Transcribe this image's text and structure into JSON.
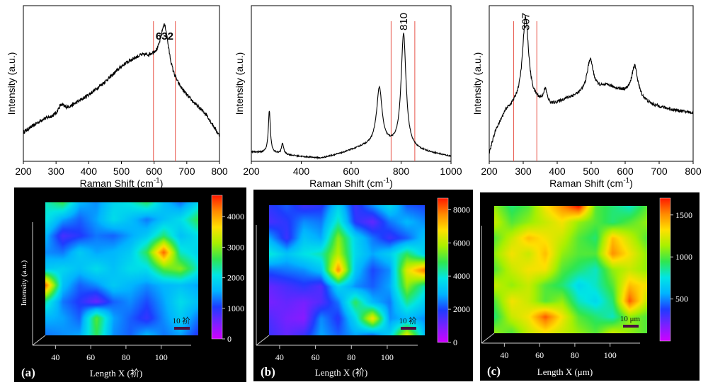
{
  "colors": {
    "spectrum_line": "#000000",
    "marker_line": "#e8554a",
    "panel_bg": "#000000",
    "axis_light": "#cccccc",
    "text_light": "#ffffff",
    "colormap": [
      "#d000ff",
      "#7a20ff",
      "#1e3cff",
      "#00b4ff",
      "#00e5e5",
      "#2fe650",
      "#a8f000",
      "#ffe000",
      "#ff8a00",
      "#ff1800"
    ]
  },
  "chart_data": [
    {
      "type": "line",
      "panel": "spectrum-1",
      "xlabel": "Raman Shift (cm",
      "xlabel_sup": "-1",
      "xlabel_end": ")",
      "ylabel": "Intensity (a.u.)",
      "xlim": [
        200,
        800
      ],
      "xticks": [
        200,
        300,
        400,
        500,
        600,
        700,
        800
      ],
      "ylim": [
        0,
        1
      ],
      "peak_label": "632",
      "peak_label_x": 632,
      "peak_label_bold": true,
      "peak_label_rotated": false,
      "markers": [
        598,
        665
      ],
      "peaks": [
        {
          "center": 632,
          "height": 0.31,
          "width": 16
        },
        {
          "center": 315,
          "height": 0.05,
          "width": 12
        },
        {
          "center": 550,
          "height": 0.1,
          "width": 90
        }
      ],
      "baseline": [
        [
          200,
          0.18
        ],
        [
          260,
          0.26
        ],
        [
          300,
          0.28
        ],
        [
          400,
          0.4
        ],
        [
          500,
          0.53
        ],
        [
          560,
          0.57
        ],
        [
          600,
          0.57
        ],
        [
          680,
          0.42
        ],
        [
          760,
          0.28
        ],
        [
          800,
          0.15
        ]
      ],
      "noise": 0.012
    },
    {
      "type": "line",
      "panel": "spectrum-2",
      "xlabel": "Raman Shift (cm",
      "xlabel_sup": "-1",
      "xlabel_end": ")",
      "ylabel": "Intensity (a.u.)",
      "xlim": [
        200,
        1000
      ],
      "xticks": [
        200,
        400,
        600,
        800,
        1000
      ],
      "ylim": [
        0,
        1
      ],
      "peak_label": "810",
      "peak_label_x": 810,
      "peak_label_bold": false,
      "peak_label_rotated": true,
      "markers": [
        760,
        855
      ],
      "peaks": [
        {
          "center": 810,
          "height": 0.73,
          "width": 12
        },
        {
          "center": 713,
          "height": 0.36,
          "width": 13
        },
        {
          "center": 272,
          "height": 0.27,
          "width": 5
        },
        {
          "center": 325,
          "height": 0.07,
          "width": 5
        }
      ],
      "baseline": [
        [
          200,
          0.06
        ],
        [
          300,
          0.05
        ],
        [
          400,
          0.03
        ],
        [
          480,
          0.02
        ],
        [
          560,
          0.05
        ],
        [
          640,
          0.09
        ],
        [
          700,
          0.11
        ],
        [
          760,
          0.1
        ],
        [
          860,
          0.07
        ],
        [
          1000,
          0.03
        ]
      ],
      "noise": 0.004
    },
    {
      "type": "line",
      "panel": "spectrum-3",
      "xlabel": "Raman Shift (cm",
      "xlabel_sup": "-1",
      "xlabel_end": ")",
      "ylabel": "Intensity (a.u.)",
      "xlim": [
        200,
        800
      ],
      "xticks": [
        200,
        300,
        400,
        500,
        600,
        700,
        800
      ],
      "ylim": [
        0,
        1
      ],
      "peak_label": "307",
      "peak_label_x": 307,
      "peak_label_bold": false,
      "peak_label_rotated": true,
      "markers": [
        272,
        340
      ],
      "peaks": [
        {
          "center": 307,
          "height": 0.56,
          "width": 11
        },
        {
          "center": 365,
          "height": 0.09,
          "width": 7
        },
        {
          "center": 497,
          "height": 0.21,
          "width": 11
        },
        {
          "center": 628,
          "height": 0.2,
          "width": 11
        }
      ],
      "baseline": [
        [
          200,
          0.05
        ],
        [
          220,
          0.2
        ],
        [
          250,
          0.32
        ],
        [
          280,
          0.36
        ],
        [
          340,
          0.37
        ],
        [
          380,
          0.35
        ],
        [
          430,
          0.4
        ],
        [
          550,
          0.48
        ],
        [
          600,
          0.44
        ],
        [
          680,
          0.36
        ],
        [
          740,
          0.33
        ],
        [
          800,
          0.31
        ]
      ],
      "noise": 0.01
    },
    {
      "type": "heatmap",
      "panel": "map-a",
      "panel_label": "(a)",
      "xlabel": "Length X (衸)",
      "ylabel": "Intensity (a.u.)",
      "xticks": [
        40,
        60,
        80,
        100
      ],
      "xrange": [
        27,
        117
      ],
      "colorbar_ticks": [
        0,
        1000,
        2000,
        3000,
        4000
      ],
      "colorbar_max": 4700,
      "scalebar_label": "10 衸",
      "grid": [
        [
          2200,
          2600,
          1600,
          1400,
          1900,
          2100,
          2500,
          1700,
          1300,
          1900
        ],
        [
          2100,
          1500,
          1200,
          1500,
          2000,
          1700,
          1300,
          1700,
          2000,
          2600
        ],
        [
          1600,
          800,
          1000,
          1300,
          1200,
          1500,
          1800,
          2500,
          1700,
          2000
        ],
        [
          1400,
          1300,
          1800,
          1500,
          1600,
          1800,
          2600,
          4400,
          2200,
          1900
        ],
        [
          1800,
          1900,
          1700,
          2000,
          1700,
          2000,
          2000,
          2800,
          3000,
          2200
        ],
        [
          4300,
          1700,
          1200,
          1400,
          1800,
          1600,
          1400,
          1600,
          1700,
          1500
        ],
        [
          2300,
          1300,
          1000,
          600,
          1200,
          1400,
          1100,
          1500,
          2000,
          1700
        ],
        [
          1600,
          1500,
          1200,
          2800,
          1500,
          1200,
          900,
          1400,
          1800,
          1300
        ],
        [
          1300,
          1400,
          1500,
          2600,
          1400,
          1200,
          1600,
          1300,
          1500,
          1000
        ]
      ]
    },
    {
      "type": "heatmap",
      "panel": "map-b",
      "panel_label": "(b)",
      "xlabel": "Length X (衸)",
      "ylabel": "",
      "xticks": [
        40,
        60,
        80,
        100
      ],
      "xrange": [
        27,
        117
      ],
      "colorbar_ticks": [
        0,
        2000,
        4000,
        6000,
        8000
      ],
      "colorbar_max": 8700,
      "scalebar_label": "10 衸",
      "grid": [
        [
          1800,
          2200,
          1600,
          1800,
          3500,
          1600,
          2600,
          3600,
          2200,
          2000
        ],
        [
          1500,
          1800,
          2600,
          2400,
          4200,
          1800,
          1200,
          2400,
          3000,
          2600
        ],
        [
          2800,
          1600,
          3200,
          2800,
          5600,
          3500,
          2400,
          1600,
          2200,
          3200
        ],
        [
          4000,
          3200,
          3800,
          4200,
          6000,
          3600,
          2800,
          3400,
          4800,
          3500
        ],
        [
          2200,
          2400,
          2600,
          3200,
          7800,
          3200,
          2000,
          2600,
          6400,
          7900
        ],
        [
          1200,
          1500,
          1800,
          1400,
          3600,
          2600,
          2200,
          2800,
          5600,
          4200
        ],
        [
          1000,
          1200,
          1000,
          1400,
          2400,
          4800,
          3000,
          2400,
          4400,
          3400
        ],
        [
          1400,
          1000,
          800,
          2600,
          1800,
          3600,
          6800,
          2600,
          3000,
          2600
        ],
        [
          1600,
          1200,
          1600,
          2800,
          2200,
          2800,
          2400,
          3400,
          6400,
          3200
        ]
      ]
    },
    {
      "type": "heatmap",
      "panel": "map-c",
      "panel_label": "(c)",
      "xlabel": "Length X (μm)",
      "ylabel": "",
      "xticks": [
        40,
        60,
        80,
        100
      ],
      "xrange": [
        27,
        117
      ],
      "colorbar_ticks": [
        500,
        1000,
        1500
      ],
      "colorbar_max": 1700,
      "scalebar_label": "10 μm",
      "grid": [
        [
          1100,
          900,
          1000,
          1300,
          1500,
          1700,
          1000,
          900,
          800,
          1000
        ],
        [
          1200,
          1000,
          1100,
          1200,
          1300,
          1100,
          1000,
          900,
          1000,
          1100
        ],
        [
          1000,
          1200,
          1400,
          1300,
          1200,
          1000,
          900,
          1400,
          1200,
          1000
        ],
        [
          1100,
          1300,
          1200,
          1400,
          1100,
          1000,
          1000,
          1500,
          1300,
          1100
        ],
        [
          1000,
          1200,
          1300,
          1300,
          1000,
          900,
          800,
          1100,
          1200,
          1100
        ],
        [
          1200,
          1100,
          1200,
          1000,
          900,
          700,
          800,
          1000,
          1400,
          1300
        ],
        [
          1000,
          1300,
          1200,
          1000,
          1100,
          800,
          700,
          900,
          1600,
          1200
        ],
        [
          900,
          1200,
          1300,
          1600,
          1300,
          1000,
          900,
          800,
          1100,
          1000
        ],
        [
          1100,
          1000,
          1200,
          1300,
          1200,
          1100,
          1000,
          1200,
          1100,
          1000
        ]
      ]
    }
  ]
}
